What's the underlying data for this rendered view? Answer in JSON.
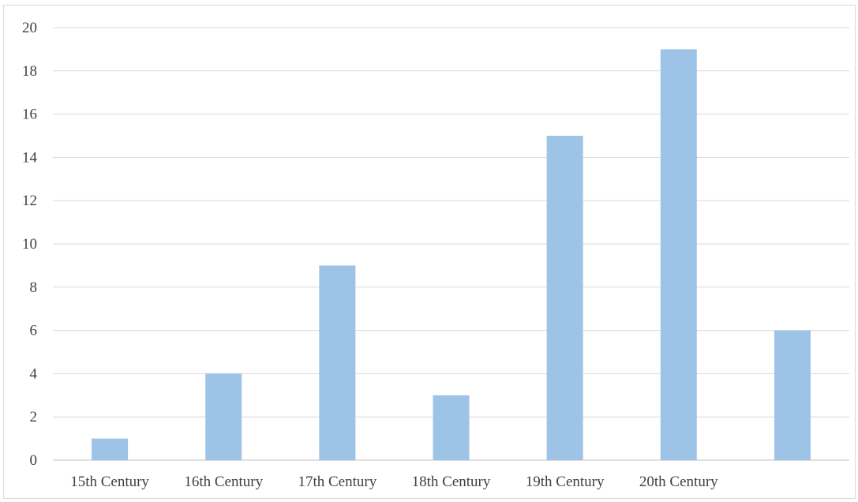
{
  "chart_data": {
    "type": "bar",
    "categories": [
      "15th Century",
      "16th Century",
      "17th Century",
      "18th Century",
      "19th Century",
      "20th Century",
      ""
    ],
    "values": [
      1,
      4,
      9,
      3,
      15,
      19,
      6
    ],
    "title": "",
    "xlabel": "",
    "ylabel": "",
    "ylim": [
      0,
      20
    ],
    "yticks": [
      0,
      2,
      4,
      6,
      8,
      10,
      12,
      14,
      16,
      18,
      20
    ],
    "grid": true,
    "legend": "none",
    "bar_color": "#9dc3e6"
  }
}
